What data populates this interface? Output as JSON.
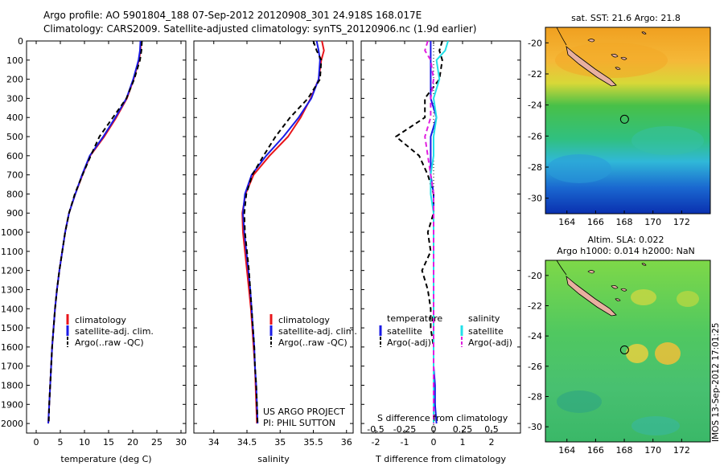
{
  "header": {
    "line1": "Argo profile: AO 5901804_188 07-Sep-2012 20120908_301 24.918S 168.017E",
    "line2": "Climatology: CARS2009. Satellite-adjusted climatology: synTS_20120906.nc (1.9d earlier)"
  },
  "stamp": "IMOS 13-Sep-2012 17:01:25",
  "colors": {
    "climatology": "#e8141a",
    "satellite": "#1a1ae6",
    "argo": "#000000",
    "magenta": "#e01ee0",
    "cyan": "#22e0e8",
    "land": "#e8b0a0"
  },
  "chart_data": [
    {
      "type": "line",
      "panel": "temperature",
      "xlabel": "temperature (deg C)",
      "ylabel": "",
      "xlim": [
        -2,
        31
      ],
      "ylim": [
        2050,
        0
      ],
      "xticks": [
        0,
        5,
        10,
        15,
        20,
        25,
        30
      ],
      "yticks": [
        0,
        100,
        200,
        300,
        400,
        500,
        600,
        700,
        800,
        900,
        1000,
        1100,
        1200,
        1300,
        1400,
        1500,
        1600,
        1700,
        1800,
        1900,
        2000
      ],
      "depths": [
        0,
        50,
        100,
        200,
        300,
        400,
        500,
        600,
        700,
        800,
        900,
        1000,
        1100,
        1200,
        1300,
        1400,
        1500,
        1600,
        1700,
        1800,
        1900,
        2000
      ],
      "series": [
        {
          "name": "climatology",
          "color": "#e8141a",
          "dash": "",
          "values": [
            21.7,
            21.6,
            21.3,
            20.2,
            18.8,
            16.6,
            14.1,
            11.2,
            9.6,
            8.1,
            6.8,
            6.0,
            5.4,
            4.8,
            4.3,
            3.9,
            3.6,
            3.3,
            3.1,
            2.9,
            2.7,
            2.5
          ]
        },
        {
          "name": "satellite-adj. clim.",
          "color": "#1a1ae6",
          "dash": "",
          "values": [
            21.6,
            21.5,
            21.2,
            20.1,
            18.7,
            16.4,
            13.9,
            11.1,
            9.5,
            8.1,
            6.8,
            6.0,
            5.4,
            4.8,
            4.3,
            3.9,
            3.6,
            3.3,
            3.1,
            2.9,
            2.7,
            2.5
          ]
        },
        {
          "name": "Argo(..raw -QC)",
          "color": "#000000",
          "dash": "6,4",
          "values": [
            21.9,
            21.8,
            21.5,
            20.3,
            18.7,
            15.9,
            13.1,
            11.3,
            9.6,
            8.0,
            6.8,
            6.0,
            5.4,
            4.8,
            4.3,
            3.9,
            3.6,
            3.3,
            3.1,
            2.9,
            2.7,
            2.6
          ]
        }
      ],
      "legend": [
        "climatology",
        "satellite-adj. clim.",
        "Argo(..raw -QC)"
      ]
    },
    {
      "type": "line",
      "panel": "salinity",
      "xlabel": "salinity",
      "xlim": [
        33.7,
        36.1
      ],
      "ylim": [
        2050,
        0
      ],
      "xticks": [
        34,
        34.5,
        35,
        35.5,
        36
      ],
      "depths": [
        0,
        50,
        100,
        200,
        300,
        400,
        500,
        600,
        700,
        800,
        900,
        1000,
        1100,
        1200,
        1300,
        1400,
        1500,
        1600,
        1700,
        1800,
        1900,
        2000
      ],
      "series": [
        {
          "name": "climatology",
          "color": "#e8141a",
          "dash": "",
          "values": [
            35.63,
            35.66,
            35.62,
            35.58,
            35.46,
            35.31,
            35.12,
            34.84,
            34.6,
            34.48,
            34.43,
            34.44,
            34.47,
            34.5,
            34.53,
            34.56,
            34.58,
            34.6,
            34.62,
            34.63,
            34.64,
            34.65
          ]
        },
        {
          "name": "satellite-adj. clim.",
          "color": "#1a1ae6",
          "dash": "",
          "values": [
            35.55,
            35.58,
            35.6,
            35.58,
            35.47,
            35.28,
            35.05,
            34.79,
            34.57,
            34.47,
            34.44,
            34.46,
            34.49,
            34.52,
            34.55,
            34.57,
            34.59,
            34.61,
            34.62,
            34.64,
            34.65,
            34.66
          ]
        },
        {
          "name": "Argo(..raw -QC)",
          "color": "#000000",
          "dash": "6,4",
          "values": [
            35.5,
            35.55,
            35.62,
            35.6,
            35.42,
            35.15,
            34.93,
            34.75,
            34.58,
            34.49,
            34.46,
            34.47,
            34.5,
            34.53,
            34.55,
            34.57,
            34.59,
            34.61,
            34.62,
            34.64,
            34.65,
            34.66
          ]
        }
      ],
      "legend": [
        "climatology",
        "satellite-adj. clim.",
        "Argo(..raw -QC)"
      ],
      "annotation": [
        "US ARGO PROJECT",
        "PI: PHIL SUTTON"
      ]
    },
    {
      "type": "line",
      "panel": "difference",
      "xlabel": "T difference from climatology",
      "xlabel2": "S difference from climatology",
      "xlim": [
        -2.5,
        3
      ],
      "ylim": [
        2050,
        0
      ],
      "xticks": [
        -2,
        -1,
        0,
        1,
        2
      ],
      "xticks_top": [
        "-0.5",
        "-0.25",
        "0",
        "0.25",
        "0.5"
      ],
      "depths": [
        0,
        50,
        100,
        200,
        300,
        400,
        500,
        600,
        700,
        800,
        900,
        1000,
        1100,
        1200,
        1300,
        1400,
        1500,
        1600,
        1700,
        1800,
        1900,
        2000
      ],
      "series": [
        {
          "name": "satellite",
          "group": "temperature",
          "color": "#1a1ae6",
          "dash": "",
          "values": [
            -0.1,
            -0.1,
            -0.1,
            -0.1,
            -0.1,
            0.1,
            -0.1,
            -0.1,
            -0.1,
            0.0,
            0.0,
            0.0,
            0.0,
            0.0,
            0.0,
            0.0,
            0.0,
            0.0,
            0.0,
            0.05,
            0.05,
            0.1
          ]
        },
        {
          "name": "Argo(-adj)",
          "group": "temperature",
          "color": "#000000",
          "dash": "6,4",
          "values": [
            0.3,
            0.2,
            0.3,
            0.2,
            -0.3,
            -0.3,
            -1.3,
            -0.5,
            -0.2,
            0.0,
            0.0,
            -0.2,
            -0.1,
            -0.4,
            -0.2,
            -0.1,
            -0.1,
            0.0,
            0.0,
            0.0,
            0.0,
            0.0
          ]
        },
        {
          "name": "satellite",
          "group": "salinity",
          "color": "#22e0e8",
          "dash": "",
          "values": [
            0.5,
            0.4,
            0.1,
            0.2,
            0.0,
            0.1,
            0.0,
            0.0,
            -0.1,
            -0.1,
            0.0,
            0.0,
            0.0,
            0.0,
            0.0,
            0.0,
            0.0,
            0.0,
            0.0,
            0.0,
            0.0,
            0.0
          ]
        },
        {
          "name": "Argo(-adj)",
          "group": "salinity",
          "color": "#e01ee0",
          "dash": "6,4",
          "values": [
            -0.2,
            -0.3,
            -0.1,
            0.0,
            -0.1,
            -0.1,
            -0.3,
            -0.2,
            -0.1,
            0.0,
            0.0,
            0.0,
            0.0,
            0.0,
            0.0,
            0.0,
            0.0,
            0.0,
            0.0,
            0.0,
            0.0,
            0.0
          ]
        }
      ],
      "legend_titles": [
        "temperature",
        "salinity"
      ]
    },
    {
      "type": "heatmap",
      "panel": "sst-map",
      "title": "sat. SST: 21.6  Argo: 21.8",
      "xlim": [
        162.5,
        174
      ],
      "ylim": [
        -31,
        -19
      ],
      "xticks": [
        164,
        166,
        168,
        170,
        172
      ],
      "yticks": [
        -20,
        -22,
        -24,
        -26,
        -28,
        -30
      ],
      "profile_location": [
        168.017,
        -24.918
      ]
    },
    {
      "type": "heatmap",
      "panel": "sla-map",
      "title_lines": [
        "Altim. SLA: 0.022",
        "Argo h1000: 0.014 h2000: NaN"
      ],
      "xlim": [
        162.5,
        174
      ],
      "ylim": [
        -31,
        -19
      ],
      "xticks": [
        164,
        166,
        168,
        170,
        172
      ],
      "yticks": [
        -20,
        -22,
        -24,
        -26,
        -28,
        -30
      ],
      "profile_location": [
        168.017,
        -24.918
      ]
    }
  ]
}
